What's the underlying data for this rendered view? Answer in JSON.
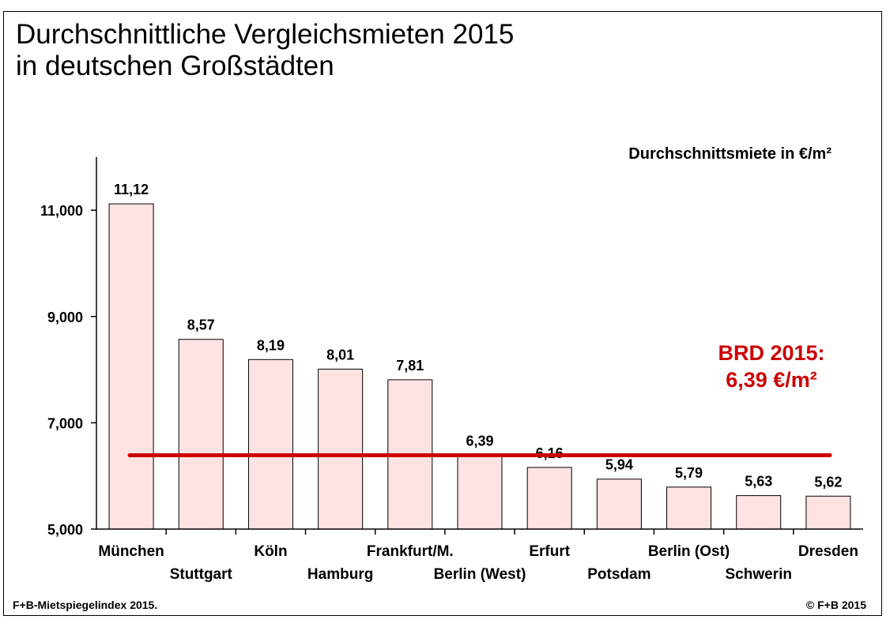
{
  "title": {
    "line1": "Durchschnittliche Vergleichsmieten 2015",
    "line2": "in deutschen Großstädten"
  },
  "footer": {
    "source": "F+B-Mietspiegelindex 2015.",
    "copyright": "© F+B 2015"
  },
  "colors": {
    "bar_fill": "#ffe2e2",
    "bar_stroke": "#000000",
    "reference_line": "#cc0000"
  },
  "chart_data": {
    "type": "bar",
    "title": "",
    "unit_label": "Durchschnittsmiete in €/m²",
    "categories": [
      "München",
      "Stuttgart",
      "Köln",
      "Hamburg",
      "Frankfurt/M.",
      "Berlin (West)",
      "Erfurt",
      "Potsdam",
      "Berlin (Ost)",
      "Schwerin",
      "Dresden"
    ],
    "values": [
      11.12,
      8.57,
      8.19,
      8.01,
      7.81,
      6.39,
      6.16,
      5.94,
      5.79,
      5.63,
      5.62
    ],
    "value_labels": [
      "11,12",
      "8,57",
      "8,19",
      "8,01",
      "7,81",
      "6,39",
      "6,16",
      "5,94",
      "5,79",
      "5,63",
      "5,62"
    ],
    "ylim": [
      5,
      12
    ],
    "yticks": [
      5,
      7,
      9,
      11
    ],
    "ytick_labels": [
      "5,000",
      "7,000",
      "9,000",
      "11,000"
    ],
    "reference": {
      "value": 6.39,
      "label_line1": "BRD 2015:",
      "label_line2": "6,39 €/m²"
    },
    "grid": false,
    "legend": "none"
  }
}
